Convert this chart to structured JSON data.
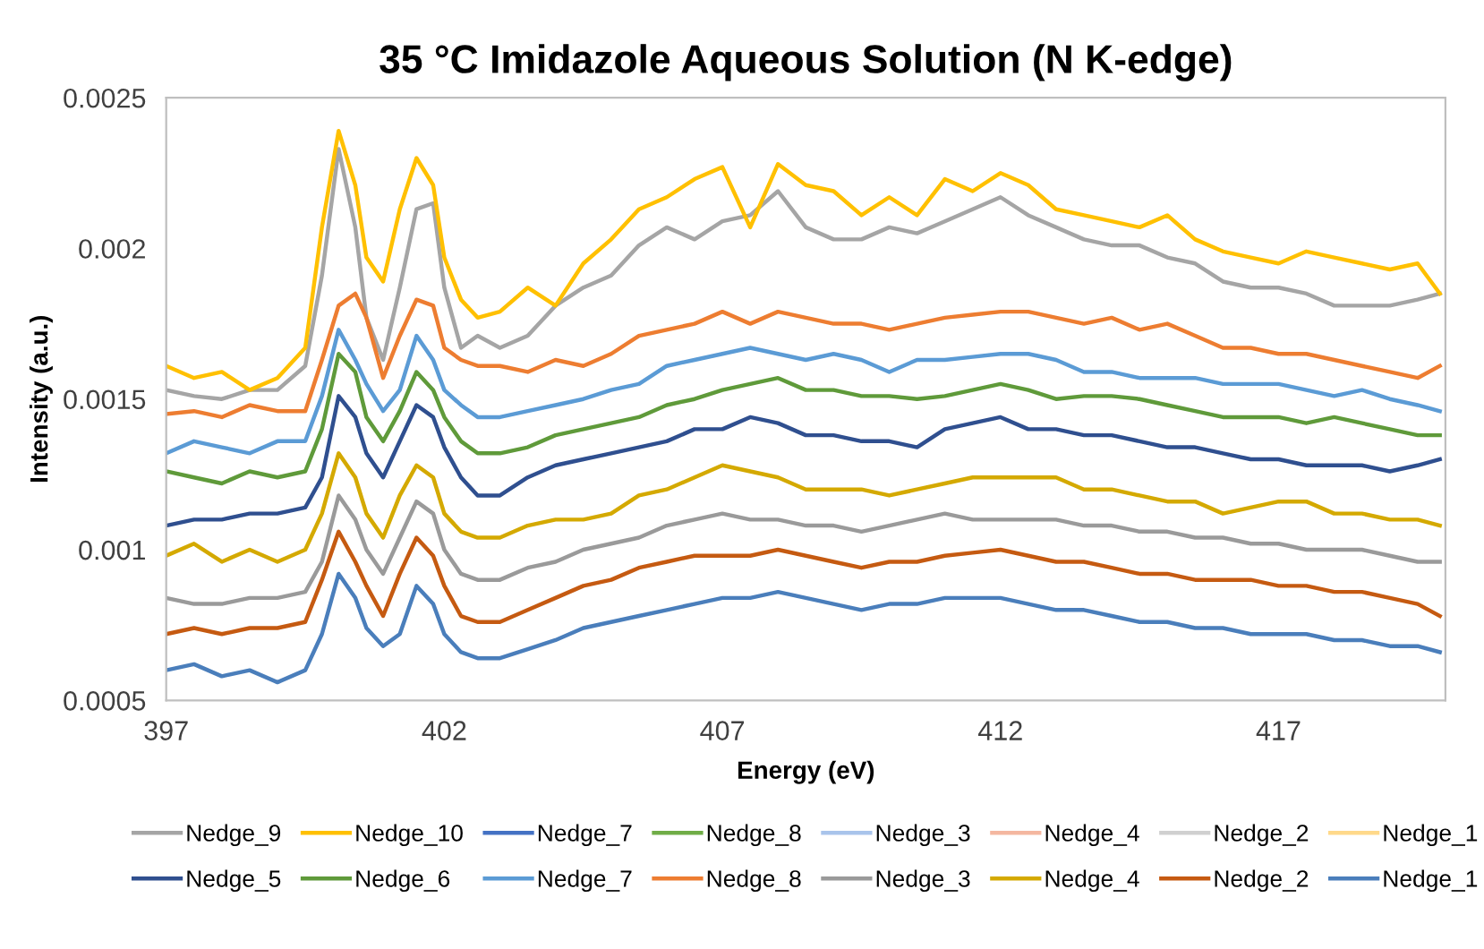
{
  "chart_data": {
    "type": "line",
    "title": "35 °C Imidazole Aqueous Solution (N K-edge)",
    "xlabel": "Energy (eV)",
    "ylabel": "Intensity (a.u.)",
    "xlim": [
      397,
      420
    ],
    "xticks": [
      397,
      402,
      407,
      412,
      417
    ],
    "ylim": [
      0.0005,
      0.0025
    ],
    "yticks": [
      0.0005,
      0.001,
      0.0015,
      0.002,
      0.0025
    ],
    "grid": false,
    "legend": "bottom",
    "marker": "none",
    "line_style": "solid",
    "x": [
      397,
      397.5,
      398,
      398.5,
      399,
      399.5,
      399.8,
      400.1,
      400.4,
      400.6,
      400.9,
      401.2,
      401.5,
      401.8,
      402,
      402.3,
      402.6,
      403,
      403.5,
      404,
      404.5,
      405,
      405.5,
      406,
      406.5,
      407,
      407.5,
      408,
      408.5,
      409,
      409.5,
      410,
      410.5,
      411,
      411.5,
      412,
      412.5,
      413,
      413.5,
      414,
      414.5,
      415,
      415.5,
      416,
      416.5,
      417,
      417.5,
      418,
      418.5,
      419,
      419.5,
      419.9
    ],
    "series": [
      {
        "name": "Nedge_9",
        "color": "#a5a5a5",
        "values": [
          0.00153,
          0.00151,
          0.0015,
          0.00153,
          0.00153,
          0.00161,
          0.00191,
          0.00233,
          0.00207,
          0.00177,
          0.00163,
          0.00187,
          0.00213,
          0.00215,
          0.00187,
          0.00167,
          0.00171,
          0.00167,
          0.00171,
          0.00181,
          0.00187,
          0.00191,
          0.00201,
          0.00207,
          0.00203,
          0.00209,
          0.00211,
          0.00219,
          0.00207,
          0.00203,
          0.00203,
          0.00207,
          0.00205,
          0.00209,
          0.00213,
          0.00217,
          0.00211,
          0.00207,
          0.00203,
          0.00201,
          0.00201,
          0.00197,
          0.00195,
          0.00189,
          0.00187,
          0.00187,
          0.00185,
          0.00181,
          0.00181,
          0.00181,
          0.00183,
          0.00185
        ]
      },
      {
        "name": "Nedge_10",
        "color": "#ffc000",
        "values": [
          0.00161,
          0.00157,
          0.00159,
          0.00153,
          0.00157,
          0.00167,
          0.00207,
          0.00239,
          0.00221,
          0.00197,
          0.00189,
          0.00213,
          0.0023,
          0.00221,
          0.00197,
          0.00183,
          0.00177,
          0.00179,
          0.00187,
          0.00181,
          0.00195,
          0.00203,
          0.00213,
          0.00217,
          0.00223,
          0.00227,
          0.00207,
          0.00228,
          0.00221,
          0.00219,
          0.00211,
          0.00217,
          0.00211,
          0.00223,
          0.00219,
          0.00225,
          0.00221,
          0.00213,
          0.00211,
          0.00209,
          0.00207,
          0.00211,
          0.00203,
          0.00199,
          0.00197,
          0.00195,
          0.00199,
          0.00197,
          0.00195,
          0.00193,
          0.00195,
          0.00185
        ]
      },
      {
        "name": "Nedge_7",
        "color": "#4472c4",
        "values": [
          null,
          null,
          null,
          null,
          null,
          null,
          null,
          null,
          null,
          null,
          null,
          null,
          null,
          null,
          null,
          null,
          null,
          null,
          null,
          null,
          null,
          null,
          null,
          null,
          null,
          null,
          null,
          null,
          null,
          null,
          null,
          null,
          null,
          null,
          null,
          null,
          null,
          null,
          null,
          null,
          null,
          null,
          null,
          null,
          null,
          null,
          null,
          null,
          null,
          null,
          null,
          null
        ]
      },
      {
        "name": "Nedge_8",
        "color": "#70ad47",
        "values": [
          null,
          null,
          null,
          null,
          null,
          null,
          null,
          null,
          null,
          null,
          null,
          null,
          null,
          null,
          null,
          null,
          null,
          null,
          null,
          null,
          null,
          null,
          null,
          null,
          null,
          null,
          null,
          null,
          null,
          null,
          null,
          null,
          null,
          null,
          null,
          null,
          null,
          null,
          null,
          null,
          null,
          null,
          null,
          null,
          null,
          null,
          null,
          null,
          null,
          null,
          null,
          null
        ]
      },
      {
        "name": "Nedge_3",
        "color": "#a9c4eb",
        "values": [
          null,
          null,
          null,
          null,
          null,
          null,
          null,
          null,
          null,
          null,
          null,
          null,
          null,
          null,
          null,
          null,
          null,
          null,
          null,
          null,
          null,
          null,
          null,
          null,
          null,
          null,
          null,
          null,
          null,
          null,
          null,
          null,
          null,
          null,
          null,
          null,
          null,
          null,
          null,
          null,
          null,
          null,
          null,
          null,
          null,
          null,
          null,
          null,
          null,
          null,
          null,
          null
        ]
      },
      {
        "name": "Nedge_4",
        "color": "#f4b7a0",
        "values": [
          null,
          null,
          null,
          null,
          null,
          null,
          null,
          null,
          null,
          null,
          null,
          null,
          null,
          null,
          null,
          null,
          null,
          null,
          null,
          null,
          null,
          null,
          null,
          null,
          null,
          null,
          null,
          null,
          null,
          null,
          null,
          null,
          null,
          null,
          null,
          null,
          null,
          null,
          null,
          null,
          null,
          null,
          null,
          null,
          null,
          null,
          null,
          null,
          null,
          null,
          null,
          null
        ]
      },
      {
        "name": "Nedge_2",
        "color": "#d0d0d0",
        "values": [
          null,
          null,
          null,
          null,
          null,
          null,
          null,
          null,
          null,
          null,
          null,
          null,
          null,
          null,
          null,
          null,
          null,
          null,
          null,
          null,
          null,
          null,
          null,
          null,
          null,
          null,
          null,
          null,
          null,
          null,
          null,
          null,
          null,
          null,
          null,
          null,
          null,
          null,
          null,
          null,
          null,
          null,
          null,
          null,
          null,
          null,
          null,
          null,
          null,
          null,
          null,
          null
        ]
      },
      {
        "name": "Nedge_1",
        "color": "#ffd98a",
        "values": [
          null,
          null,
          null,
          null,
          null,
          null,
          null,
          null,
          null,
          null,
          null,
          null,
          null,
          null,
          null,
          null,
          null,
          null,
          null,
          null,
          null,
          null,
          null,
          null,
          null,
          null,
          null,
          null,
          null,
          null,
          null,
          null,
          null,
          null,
          null,
          null,
          null,
          null,
          null,
          null,
          null,
          null,
          null,
          null,
          null,
          null,
          null,
          null,
          null,
          null,
          null,
          null
        ]
      },
      {
        "name": "Nedge_5",
        "color": "#2f4f8f",
        "values": [
          0.00108,
          0.0011,
          0.0011,
          0.00112,
          0.00112,
          0.00114,
          0.00124,
          0.00151,
          0.00144,
          0.00132,
          0.00124,
          0.00136,
          0.00148,
          0.00144,
          0.00134,
          0.00124,
          0.00118,
          0.00118,
          0.00124,
          0.00128,
          0.0013,
          0.00132,
          0.00134,
          0.00136,
          0.0014,
          0.0014,
          0.00144,
          0.00142,
          0.00138,
          0.00138,
          0.00136,
          0.00136,
          0.00134,
          0.0014,
          0.00142,
          0.00144,
          0.0014,
          0.0014,
          0.00138,
          0.00138,
          0.00136,
          0.00134,
          0.00134,
          0.00132,
          0.0013,
          0.0013,
          0.00128,
          0.00128,
          0.00128,
          0.00126,
          0.00128,
          0.0013
        ]
      },
      {
        "name": "Nedge_6",
        "color": "#5f9a3a",
        "values": [
          0.00126,
          0.00124,
          0.00122,
          0.00126,
          0.00124,
          0.00126,
          0.0014,
          0.00165,
          0.00159,
          0.00144,
          0.00136,
          0.00146,
          0.00159,
          0.00153,
          0.00144,
          0.00136,
          0.00132,
          0.00132,
          0.00134,
          0.00138,
          0.0014,
          0.00142,
          0.00144,
          0.00148,
          0.0015,
          0.00153,
          0.00155,
          0.00157,
          0.00153,
          0.00153,
          0.00151,
          0.00151,
          0.0015,
          0.00151,
          0.00153,
          0.00155,
          0.00153,
          0.0015,
          0.00151,
          0.00151,
          0.0015,
          0.00148,
          0.00146,
          0.00144,
          0.00144,
          0.00144,
          0.00142,
          0.00144,
          0.00142,
          0.0014,
          0.00138,
          0.00138
        ]
      },
      {
        "name": "Nedge_7",
        "color": "#5b9bd5",
        "values": [
          0.00132,
          0.00136,
          0.00134,
          0.00132,
          0.00136,
          0.00136,
          0.00151,
          0.00173,
          0.00163,
          0.00155,
          0.00146,
          0.00153,
          0.00171,
          0.00163,
          0.00153,
          0.00148,
          0.00144,
          0.00144,
          0.00146,
          0.00148,
          0.0015,
          0.00153,
          0.00155,
          0.00161,
          0.00163,
          0.00165,
          0.00167,
          0.00165,
          0.00163,
          0.00165,
          0.00163,
          0.00159,
          0.00163,
          0.00163,
          0.00164,
          0.00165,
          0.00165,
          0.00163,
          0.00159,
          0.00159,
          0.00157,
          0.00157,
          0.00157,
          0.00155,
          0.00155,
          0.00155,
          0.00153,
          0.00151,
          0.00153,
          0.0015,
          0.00148,
          0.00146
        ]
      },
      {
        "name": "Nedge_8",
        "color": "#ed7d31",
        "values": [
          0.00145,
          0.00146,
          0.00144,
          0.00148,
          0.00146,
          0.00146,
          0.00163,
          0.00181,
          0.00185,
          0.00177,
          0.00157,
          0.00171,
          0.00183,
          0.00181,
          0.00167,
          0.00163,
          0.00161,
          0.00161,
          0.00159,
          0.00163,
          0.00161,
          0.00165,
          0.00171,
          0.00173,
          0.00175,
          0.00179,
          0.00175,
          0.00179,
          0.00177,
          0.00175,
          0.00175,
          0.00173,
          0.00175,
          0.00177,
          0.00178,
          0.00179,
          0.00179,
          0.00177,
          0.00175,
          0.00177,
          0.00173,
          0.00175,
          0.00171,
          0.00167,
          0.00167,
          0.00165,
          0.00165,
          0.00163,
          0.00161,
          0.00159,
          0.00157,
          0.00161
        ]
      },
      {
        "name": "Nedge_3",
        "color": "#9a9a9a",
        "values": [
          0.00084,
          0.00082,
          0.00082,
          0.00084,
          0.00084,
          0.00086,
          0.00096,
          0.00118,
          0.0011,
          0.001,
          0.00092,
          0.00104,
          0.00116,
          0.00112,
          0.001,
          0.00092,
          0.0009,
          0.0009,
          0.00094,
          0.00096,
          0.001,
          0.00102,
          0.00104,
          0.00108,
          0.0011,
          0.00112,
          0.0011,
          0.0011,
          0.00108,
          0.00108,
          0.00106,
          0.00108,
          0.0011,
          0.00112,
          0.0011,
          0.0011,
          0.0011,
          0.0011,
          0.00108,
          0.00108,
          0.00106,
          0.00106,
          0.00104,
          0.00104,
          0.00102,
          0.00102,
          0.001,
          0.001,
          0.001,
          0.00098,
          0.00096,
          0.00096
        ]
      },
      {
        "name": "Nedge_4",
        "color": "#d4a900",
        "values": [
          0.00098,
          0.00102,
          0.00096,
          0.001,
          0.00096,
          0.001,
          0.00112,
          0.00132,
          0.00124,
          0.00112,
          0.00104,
          0.00118,
          0.00128,
          0.00124,
          0.00112,
          0.00106,
          0.00104,
          0.00104,
          0.00108,
          0.0011,
          0.0011,
          0.00112,
          0.00118,
          0.0012,
          0.00124,
          0.00128,
          0.00126,
          0.00124,
          0.0012,
          0.0012,
          0.0012,
          0.00118,
          0.0012,
          0.00122,
          0.00124,
          0.00124,
          0.00124,
          0.00124,
          0.0012,
          0.0012,
          0.00118,
          0.00116,
          0.00116,
          0.00112,
          0.00114,
          0.00116,
          0.00116,
          0.00112,
          0.00112,
          0.0011,
          0.0011,
          0.00108
        ]
      },
      {
        "name": "Nedge_2",
        "color": "#c55a11",
        "values": [
          0.00072,
          0.00074,
          0.00072,
          0.00074,
          0.00074,
          0.00076,
          0.0009,
          0.00106,
          0.00096,
          0.00088,
          0.00078,
          0.00092,
          0.00104,
          0.00098,
          0.00088,
          0.00078,
          0.00076,
          0.00076,
          0.0008,
          0.00084,
          0.00088,
          0.0009,
          0.00094,
          0.00096,
          0.00098,
          0.00098,
          0.00098,
          0.001,
          0.00098,
          0.00096,
          0.00094,
          0.00096,
          0.00096,
          0.00098,
          0.00099,
          0.001,
          0.00098,
          0.00096,
          0.00096,
          0.00094,
          0.00092,
          0.00092,
          0.0009,
          0.0009,
          0.0009,
          0.00088,
          0.00088,
          0.00086,
          0.00086,
          0.00084,
          0.00082,
          0.00078
        ]
      },
      {
        "name": "Nedge_1",
        "color": "#4a7ebb",
        "values": [
          0.0006,
          0.00062,
          0.00058,
          0.0006,
          0.00056,
          0.0006,
          0.00072,
          0.00092,
          0.00084,
          0.00074,
          0.00068,
          0.00072,
          0.00088,
          0.00082,
          0.00072,
          0.00066,
          0.00064,
          0.00064,
          0.00067,
          0.0007,
          0.00074,
          0.00076,
          0.00078,
          0.0008,
          0.00082,
          0.00084,
          0.00084,
          0.00086,
          0.00084,
          0.00082,
          0.0008,
          0.00082,
          0.00082,
          0.00084,
          0.00084,
          0.00084,
          0.00082,
          0.0008,
          0.0008,
          0.00078,
          0.00076,
          0.00076,
          0.00074,
          0.00074,
          0.00072,
          0.00072,
          0.00072,
          0.0007,
          0.0007,
          0.00068,
          0.00068,
          0.00066
        ]
      }
    ]
  }
}
